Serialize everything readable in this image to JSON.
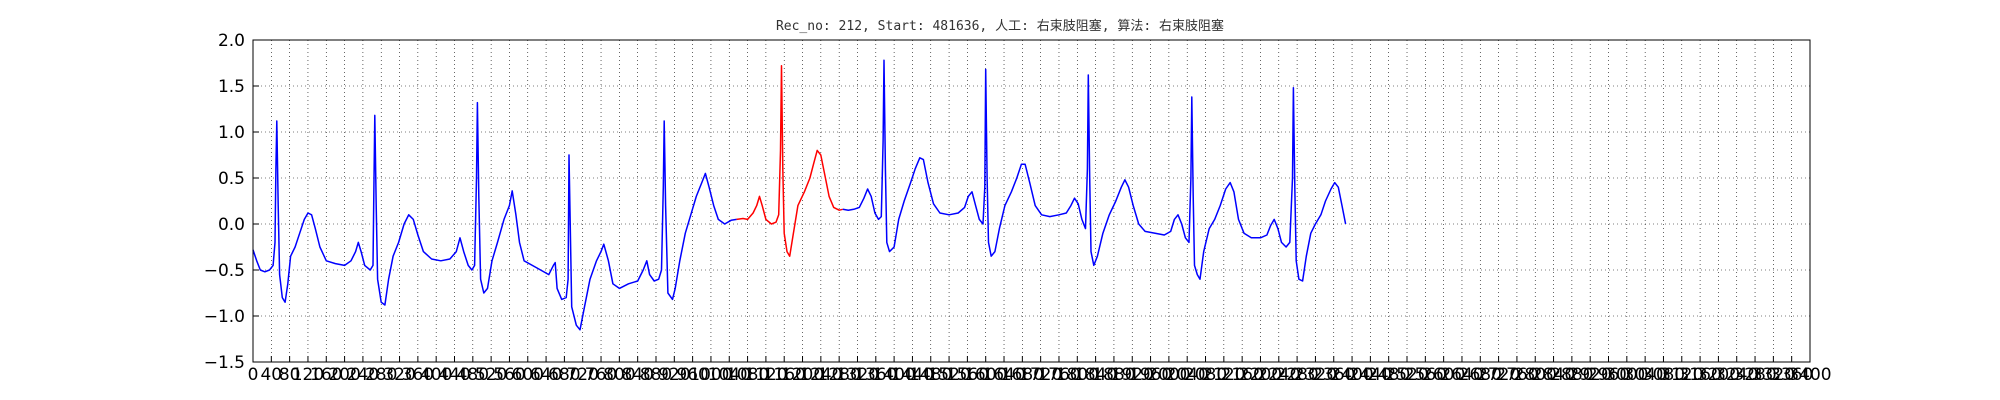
{
  "chart_data": {
    "type": "line",
    "title": "Rec_no: 212, Start: 481636, 人工: 右束肢阻塞, 算法: 右束肢阻塞",
    "xlabel": "",
    "ylabel": "",
    "xlim": [
      0,
      3400
    ],
    "ylim": [
      -1.5,
      2.0
    ],
    "grid": true,
    "yticks": [
      -1.5,
      -1.0,
      -0.5,
      0.0,
      0.5,
      1.0,
      1.5,
      2.0
    ],
    "ytick_labels": [
      "−1.5",
      "−1.0",
      "−0.5",
      "0.0",
      "0.5",
      "1.0",
      "1.5",
      "2.0"
    ],
    "xticks": [
      0,
      40,
      80,
      120,
      160,
      200,
      240,
      280,
      320,
      360,
      400,
      440,
      480,
      520,
      560,
      600,
      640,
      680,
      720,
      760,
      800,
      840,
      880,
      920,
      960,
      1000,
      1040,
      1080,
      1120,
      1160,
      1200,
      1240,
      1280,
      1320,
      1360,
      1400,
      1440,
      1480,
      1520,
      1560,
      1600,
      1640,
      1680,
      1720,
      1760,
      1800,
      1840,
      1880,
      1920,
      1960,
      2000,
      2040,
      2080,
      2120,
      2160,
      2200,
      2240,
      2280,
      2320,
      2360,
      2400,
      2440,
      2480,
      2520,
      2560,
      2600,
      2640,
      2680,
      2720,
      2760,
      2800,
      2840,
      2880,
      2920,
      2960,
      3000,
      3040,
      3080,
      3120,
      3160,
      3200,
      3240,
      3280,
      3320,
      3360,
      3400
    ],
    "xtick_labels": [
      "0",
      "40",
      "80",
      "120",
      "160",
      "200",
      "240",
      "280",
      "320",
      "360",
      "400",
      "440",
      "480",
      "520",
      "560",
      "600",
      "640",
      "680",
      "720",
      "760",
      "800",
      "840",
      "880",
      "920",
      "960",
      "1000",
      "1040",
      "1080",
      "1120",
      "1160",
      "1200",
      "1240",
      "1280",
      "1320",
      "1360",
      "1400",
      "1440",
      "1480",
      "1520",
      "1560",
      "1600",
      "1640",
      "1680",
      "1720",
      "1760",
      "1800",
      "1840",
      "1880",
      "1920",
      "1960",
      "2000",
      "2040",
      "2080",
      "2120",
      "2160",
      "2200",
      "2240",
      "2280",
      "2320",
      "2360",
      "2400",
      "2440",
      "2480",
      "2520",
      "2560",
      "2600",
      "2640",
      "2680",
      "2720",
      "2760",
      "2800",
      "2840",
      "2880",
      "2920",
      "2960",
      "3000",
      "3040",
      "3080",
      "3120",
      "3160",
      "3200",
      "3240",
      "3280",
      "3320",
      "3360",
      "3400"
    ],
    "series": [
      {
        "color": "#0000ff",
        "values": [
          [
            0,
            -0.28
          ],
          [
            8,
            -0.4
          ],
          [
            16,
            -0.5
          ],
          [
            26,
            -0.52
          ],
          [
            36,
            -0.5
          ],
          [
            44,
            -0.45
          ],
          [
            48,
            -0.2
          ],
          [
            50,
            0.6
          ],
          [
            52,
            1.12
          ],
          [
            55,
            0.2
          ],
          [
            58,
            -0.55
          ],
          [
            64,
            -0.8
          ],
          [
            70,
            -0.85
          ],
          [
            76,
            -0.65
          ],
          [
            82,
            -0.35
          ],
          [
            92,
            -0.25
          ],
          [
            102,
            -0.1
          ],
          [
            112,
            0.05
          ],
          [
            120,
            0.12
          ],
          [
            128,
            0.1
          ],
          [
            136,
            -0.05
          ],
          [
            146,
            -0.25
          ],
          [
            160,
            -0.4
          ],
          [
            180,
            -0.43
          ],
          [
            200,
            -0.45
          ],
          [
            214,
            -0.4
          ],
          [
            224,
            -0.3
          ],
          [
            230,
            -0.2
          ],
          [
            236,
            -0.3
          ],
          [
            244,
            -0.45
          ],
          [
            256,
            -0.5
          ],
          [
            262,
            -0.45
          ],
          [
            264,
            0.4
          ],
          [
            266,
            1.18
          ],
          [
            269,
            0.2
          ],
          [
            272,
            -0.6
          ],
          [
            280,
            -0.85
          ],
          [
            288,
            -0.88
          ],
          [
            296,
            -0.6
          ],
          [
            306,
            -0.35
          ],
          [
            318,
            -0.2
          ],
          [
            330,
            0.0
          ],
          [
            340,
            0.1
          ],
          [
            350,
            0.05
          ],
          [
            360,
            -0.12
          ],
          [
            372,
            -0.3
          ],
          [
            390,
            -0.38
          ],
          [
            410,
            -0.4
          ],
          [
            430,
            -0.38
          ],
          [
            444,
            -0.3
          ],
          [
            452,
            -0.15
          ],
          [
            460,
            -0.3
          ],
          [
            470,
            -0.45
          ],
          [
            478,
            -0.5
          ],
          [
            484,
            -0.45
          ],
          [
            488,
            0.5
          ],
          [
            490,
            1.32
          ],
          [
            493,
            0.3
          ],
          [
            497,
            -0.6
          ],
          [
            504,
            -0.75
          ],
          [
            512,
            -0.7
          ],
          [
            522,
            -0.4
          ],
          [
            534,
            -0.2
          ],
          [
            548,
            0.05
          ],
          [
            560,
            0.2
          ],
          [
            566,
            0.36
          ],
          [
            574,
            0.1
          ],
          [
            582,
            -0.2
          ],
          [
            592,
            -0.4
          ],
          [
            610,
            -0.45
          ],
          [
            628,
            -0.5
          ],
          [
            646,
            -0.55
          ],
          [
            656,
            -0.45
          ],
          [
            660,
            -0.42
          ],
          [
            664,
            -0.7
          ],
          [
            674,
            -0.82
          ],
          [
            684,
            -0.8
          ],
          [
            688,
            -0.6
          ],
          [
            690,
            0.75
          ],
          [
            692,
            0.2
          ],
          [
            696,
            -0.9
          ],
          [
            706,
            -1.1
          ],
          [
            714,
            -1.15
          ],
          [
            724,
            -0.9
          ],
          [
            736,
            -0.6
          ],
          [
            750,
            -0.4
          ],
          [
            760,
            -0.3
          ],
          [
            766,
            -0.22
          ],
          [
            776,
            -0.4
          ],
          [
            786,
            -0.65
          ],
          [
            800,
            -0.7
          ],
          [
            820,
            -0.65
          ],
          [
            840,
            -0.62
          ],
          [
            852,
            -0.5
          ],
          [
            860,
            -0.4
          ],
          [
            866,
            -0.55
          ],
          [
            876,
            -0.62
          ],
          [
            886,
            -0.6
          ],
          [
            892,
            -0.5
          ],
          [
            896,
            0.4
          ],
          [
            898,
            1.12
          ],
          [
            901,
            0.2
          ],
          [
            906,
            -0.75
          ],
          [
            916,
            -0.82
          ],
          [
            922,
            -0.7
          ],
          [
            932,
            -0.4
          ],
          [
            944,
            -0.1
          ],
          [
            956,
            0.1
          ],
          [
            968,
            0.3
          ],
          [
            980,
            0.45
          ],
          [
            988,
            0.55
          ],
          [
            996,
            0.4
          ],
          [
            1006,
            0.2
          ],
          [
            1016,
            0.05
          ],
          [
            1030,
            0.0
          ],
          [
            1044,
            0.04
          ],
          [
            1056,
            0.05
          ]
        ]
      },
      {
        "color": "#ff0000",
        "values": [
          [
            1056,
            0.05
          ],
          [
            1070,
            0.06
          ],
          [
            1080,
            0.05
          ],
          [
            1092,
            0.12
          ],
          [
            1100,
            0.2
          ],
          [
            1106,
            0.3
          ],
          [
            1112,
            0.2
          ],
          [
            1120,
            0.05
          ],
          [
            1132,
            0.0
          ],
          [
            1142,
            0.02
          ],
          [
            1148,
            0.1
          ],
          [
            1152,
            0.8
          ],
          [
            1154,
            1.72
          ],
          [
            1157,
            0.6
          ],
          [
            1160,
            -0.1
          ],
          [
            1166,
            -0.3
          ],
          [
            1172,
            -0.35
          ],
          [
            1180,
            -0.1
          ],
          [
            1190,
            0.2
          ],
          [
            1204,
            0.35
          ],
          [
            1216,
            0.5
          ],
          [
            1224,
            0.65
          ],
          [
            1232,
            0.8
          ],
          [
            1240,
            0.75
          ],
          [
            1248,
            0.55
          ],
          [
            1258,
            0.3
          ],
          [
            1268,
            0.18
          ],
          [
            1280,
            0.15
          ],
          [
            1288,
            0.16
          ]
        ]
      },
      {
        "color": "#0000ff",
        "values": [
          [
            1288,
            0.16
          ],
          [
            1300,
            0.15
          ],
          [
            1312,
            0.16
          ],
          [
            1324,
            0.18
          ],
          [
            1334,
            0.28
          ],
          [
            1342,
            0.38
          ],
          [
            1350,
            0.3
          ],
          [
            1358,
            0.12
          ],
          [
            1366,
            0.05
          ],
          [
            1372,
            0.08
          ],
          [
            1376,
            0.9
          ],
          [
            1378,
            1.78
          ],
          [
            1381,
            0.6
          ],
          [
            1384,
            -0.2
          ],
          [
            1390,
            -0.3
          ],
          [
            1400,
            -0.25
          ],
          [
            1410,
            0.05
          ],
          [
            1422,
            0.25
          ],
          [
            1436,
            0.45
          ],
          [
            1446,
            0.6
          ],
          [
            1456,
            0.72
          ],
          [
            1464,
            0.7
          ],
          [
            1474,
            0.45
          ],
          [
            1486,
            0.22
          ],
          [
            1500,
            0.12
          ],
          [
            1520,
            0.1
          ],
          [
            1540,
            0.12
          ],
          [
            1554,
            0.18
          ],
          [
            1562,
            0.3
          ],
          [
            1570,
            0.35
          ],
          [
            1578,
            0.2
          ],
          [
            1586,
            0.05
          ],
          [
            1594,
            0.0
          ],
          [
            1598,
            0.4
          ],
          [
            1600,
            1.68
          ],
          [
            1603,
            0.5
          ],
          [
            1606,
            -0.2
          ],
          [
            1612,
            -0.35
          ],
          [
            1620,
            -0.3
          ],
          [
            1630,
            -0.05
          ],
          [
            1642,
            0.2
          ],
          [
            1656,
            0.35
          ],
          [
            1668,
            0.5
          ],
          [
            1678,
            0.65
          ],
          [
            1686,
            0.65
          ],
          [
            1696,
            0.45
          ],
          [
            1708,
            0.2
          ],
          [
            1722,
            0.1
          ],
          [
            1740,
            0.08
          ],
          [
            1760,
            0.1
          ],
          [
            1776,
            0.12
          ],
          [
            1786,
            0.2
          ],
          [
            1794,
            0.28
          ],
          [
            1802,
            0.22
          ],
          [
            1810,
            0.05
          ],
          [
            1818,
            -0.05
          ],
          [
            1822,
            0.6
          ],
          [
            1824,
            1.62
          ],
          [
            1827,
            0.5
          ],
          [
            1830,
            -0.3
          ],
          [
            1836,
            -0.45
          ],
          [
            1844,
            -0.35
          ],
          [
            1856,
            -0.1
          ],
          [
            1870,
            0.1
          ],
          [
            1884,
            0.25
          ],
          [
            1896,
            0.4
          ],
          [
            1904,
            0.48
          ],
          [
            1912,
            0.4
          ],
          [
            1922,
            0.2
          ],
          [
            1934,
            0.0
          ],
          [
            1948,
            -0.08
          ],
          [
            1970,
            -0.1
          ],
          [
            1990,
            -0.12
          ],
          [
            2004,
            -0.08
          ],
          [
            2012,
            0.05
          ],
          [
            2020,
            0.1
          ],
          [
            2028,
            0.0
          ],
          [
            2036,
            -0.15
          ],
          [
            2044,
            -0.2
          ],
          [
            2048,
            0.5
          ],
          [
            2050,
            1.38
          ],
          [
            2053,
            0.3
          ],
          [
            2056,
            -0.45
          ],
          [
            2062,
            -0.55
          ],
          [
            2068,
            -0.6
          ],
          [
            2076,
            -0.3
          ],
          [
            2088,
            -0.05
          ],
          [
            2100,
            0.05
          ],
          [
            2112,
            0.2
          ],
          [
            2124,
            0.38
          ],
          [
            2134,
            0.45
          ],
          [
            2142,
            0.35
          ],
          [
            2152,
            0.05
          ],
          [
            2164,
            -0.1
          ],
          [
            2180,
            -0.15
          ],
          [
            2200,
            -0.15
          ],
          [
            2214,
            -0.12
          ],
          [
            2222,
            -0.02
          ],
          [
            2230,
            0.05
          ],
          [
            2238,
            -0.05
          ],
          [
            2246,
            -0.2
          ],
          [
            2256,
            -0.25
          ],
          [
            2264,
            -0.2
          ],
          [
            2270,
            0.5
          ],
          [
            2272,
            1.48
          ],
          [
            2275,
            0.4
          ],
          [
            2278,
            -0.4
          ],
          [
            2284,
            -0.6
          ],
          [
            2292,
            -0.62
          ],
          [
            2300,
            -0.35
          ],
          [
            2310,
            -0.1
          ],
          [
            2320,
            0.0
          ],
          [
            2332,
            0.1
          ],
          [
            2342,
            0.25
          ],
          [
            2354,
            0.38
          ],
          [
            2362,
            0.45
          ],
          [
            2370,
            0.4
          ],
          [
            2378,
            0.2
          ],
          [
            2386,
            0.0
          ]
        ]
      }
    ]
  }
}
